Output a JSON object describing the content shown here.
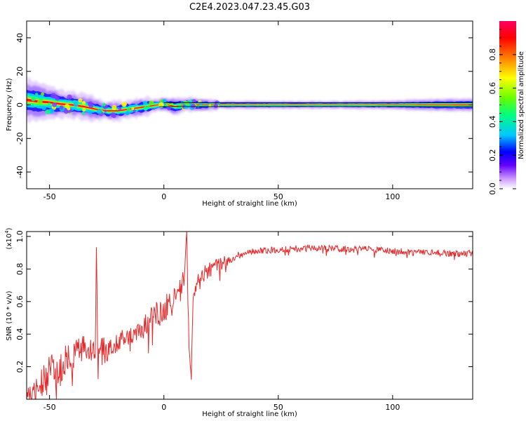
{
  "figure_title": "C2E4.2023.047.23.45.G03",
  "chart_data": [
    {
      "type": "heatmap",
      "title": "",
      "xlabel": "Height of straight line (km)",
      "ylabel": "Frequency (Hz)",
      "xlim": [
        -60,
        135
      ],
      "ylim": [
        -50,
        50
      ],
      "xticks": [
        -50,
        0,
        50,
        100
      ],
      "yticks": [
        -40,
        -20,
        0,
        20,
        40
      ],
      "colorbar": {
        "label": "Normalized spectral amplitude",
        "range": [
          0,
          1
        ],
        "ticks": [
          "0.0",
          "0.2",
          "0.4",
          "0.6",
          "0.8"
        ],
        "colormap": [
          "#ffffff",
          "#cc99ff",
          "#6600ff",
          "#0000ff",
          "#00c8ff",
          "#00ff80",
          "#66ff00",
          "#ffff00",
          "#ff8000",
          "#ff0000",
          "#ff0060"
        ]
      },
      "ridge": {
        "description_values": "frequency center (Hz) and band half-width (Hz) versus height (km)",
        "x": [
          -60,
          -55,
          -50,
          -45,
          -40,
          -35,
          -30,
          -25,
          -20,
          -15,
          -10,
          -5,
          0,
          5,
          10,
          15,
          20,
          25,
          40,
          60,
          80,
          100,
          120,
          135
        ],
        "center": [
          3,
          2,
          1.5,
          0.5,
          0,
          -1,
          -2.5,
          -3.5,
          -3.5,
          -2.5,
          -1.5,
          -0.5,
          0.5,
          -1,
          0.5,
          0,
          0,
          0,
          0,
          0,
          0,
          0,
          0,
          0
        ],
        "halfwidth": [
          7,
          6,
          5,
          4.5,
          4,
          4,
          3.5,
          3,
          3,
          3,
          3,
          2.5,
          2,
          2.5,
          2,
          2,
          1.5,
          1.2,
          1.2,
          1.2,
          1.2,
          1.4,
          2,
          2.2
        ]
      }
    },
    {
      "type": "line",
      "title": "",
      "xlabel": "Height of straight line (km)",
      "ylabel": "SNR (10 * v/v)",
      "scale_note": "(x10",
      "scale_exp": "4",
      "scale_close": ")",
      "xlim": [
        -60,
        135
      ],
      "ylim": [
        0,
        1.03
      ],
      "xticks": [
        -50,
        0,
        50,
        100
      ],
      "yticks": [
        "0.2",
        "0.4",
        "0.6",
        "0.8",
        "1.0"
      ],
      "line_color": "#e8282a",
      "series": [
        {
          "x": [
            -60,
            -55,
            -50,
            -45,
            -40,
            -35,
            -30,
            -29.5,
            -29,
            -28,
            -25,
            -20,
            -15,
            -10,
            -5,
            0,
            5,
            8,
            9,
            10,
            10.5,
            11,
            12,
            12.5,
            13,
            15,
            20,
            25,
            30,
            35,
            40,
            50,
            60,
            70,
            80,
            90,
            100,
            110,
            120,
            130,
            135
          ],
          "y": [
            0.02,
            0.07,
            0.15,
            0.2,
            0.25,
            0.3,
            0.3,
            0.94,
            0.35,
            0.28,
            0.3,
            0.36,
            0.38,
            0.42,
            0.5,
            0.54,
            0.62,
            0.68,
            0.78,
            1.03,
            0.6,
            0.35,
            0.12,
            0.5,
            0.65,
            0.72,
            0.8,
            0.83,
            0.87,
            0.9,
            0.91,
            0.92,
            0.93,
            0.93,
            0.92,
            0.92,
            0.91,
            0.9,
            0.9,
            0.89,
            0.9
          ],
          "noise_amplitude": [
            0.04,
            0.08,
            0.12,
            0.12,
            0.1,
            0.1,
            0.05,
            0.02,
            0.08,
            0.1,
            0.08,
            0.06,
            0.06,
            0.07,
            0.08,
            0.09,
            0.08,
            0.08,
            0.08,
            0.0,
            0.05,
            0.05,
            0.0,
            0.05,
            0.05,
            0.06,
            0.05,
            0.04,
            0.03,
            0.02,
            0.02,
            0.02,
            0.02,
            0.02,
            0.02,
            0.02,
            0.02,
            0.02,
            0.02,
            0.02,
            0.02
          ]
        }
      ]
    }
  ]
}
